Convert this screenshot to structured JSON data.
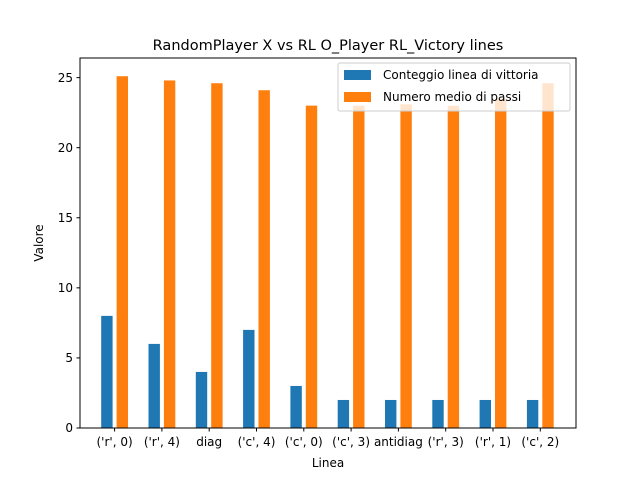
{
  "chart_data": {
    "type": "bar",
    "title": "RandomPlayer X vs RL O_Player RL_Victory lines",
    "xlabel": "Linea",
    "ylabel": "Valore",
    "categories": [
      "('r', 0)",
      "('r', 4)",
      "diag",
      "('c', 4)",
      "('c', 0)",
      "('c', 3)",
      "antidiag",
      "('r', 3)",
      "('r', 1)",
      "('c', 2)"
    ],
    "series": [
      {
        "name": "Conteggio linea di vittoria",
        "color": "#1f77b4",
        "values": [
          8,
          6,
          4,
          7,
          3,
          2,
          2,
          2,
          2,
          2
        ]
      },
      {
        "name": "Numero medio di passi",
        "color": "#ff7f0e",
        "values": [
          25.1,
          24.8,
          24.6,
          24.1,
          23.0,
          23.0,
          23.1,
          23.0,
          23.5,
          24.6
        ]
      }
    ],
    "ylim": [
      0,
      26.4
    ],
    "yticks": [
      0,
      5,
      10,
      15,
      20,
      25
    ],
    "grid": false,
    "legend_position": "top-right"
  }
}
